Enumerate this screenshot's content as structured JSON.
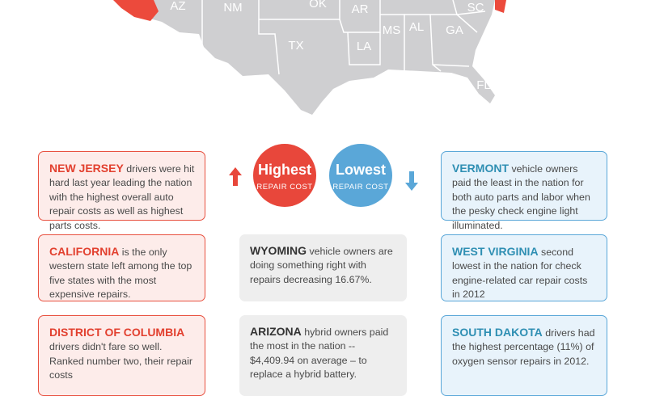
{
  "map": {
    "labels": [
      "AZ",
      "NM",
      "OK",
      "AR",
      "SC",
      "MS",
      "AL",
      "GA",
      "TX",
      "LA",
      "FL"
    ]
  },
  "badges": {
    "highest": {
      "title": "Highest",
      "subtitle": "REPAIR COST"
    },
    "lowest": {
      "title": "Lowest",
      "subtitle": "REPAIR COST"
    }
  },
  "cards": [
    {
      "state": "NEW JERSEY",
      "text": "drivers were hit hard last year leading the nation with the highest overall auto repair costs as well as highest parts costs."
    },
    {
      "state": "CALIFORNIA",
      "text": "is the only western state left among the top five states with the most expensive repairs."
    },
    {
      "state": "DISTRICT OF COLUMBIA",
      "text": "drivers didn't fare so well. Ranked number two, their repair costs"
    },
    {
      "state": "WYOMING",
      "text": "vehicle owners are doing something right with repairs decreasing 16.67%."
    },
    {
      "state": "ARIZONA",
      "text": "hybrid owners paid the most in the nation -- $4,409.94 on average – to replace a hybrid battery."
    },
    {
      "state": "VERMONT",
      "text": "vehicle owners paid the least in the nation for both auto parts and labor when the pesky check engine light illuminated."
    },
    {
      "state": "WEST VIRGINIA",
      "text": "second lowest in the nation for check engine-related car repair costs in 2012"
    },
    {
      "state": "SOUTH DAKOTA",
      "text": "drivers had the highest percentage (11%) of oxygen sensor repairs in 2012."
    }
  ]
}
